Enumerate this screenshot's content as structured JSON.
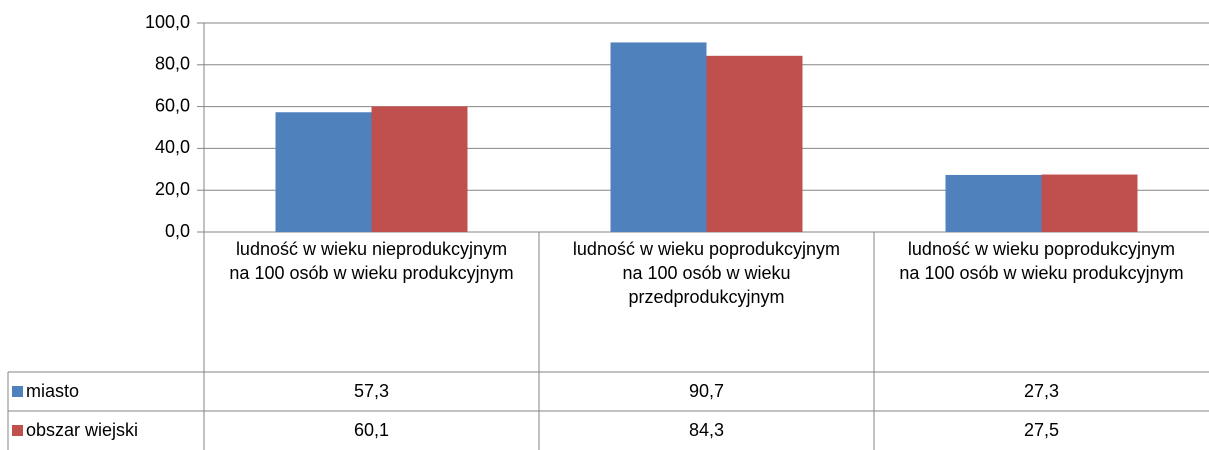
{
  "chart_data": {
    "type": "bar",
    "categories": [
      "ludność w wieku nieprodukcyjnym na 100 osób w wieku produkcyjnym",
      "ludność w wieku poprodukcyjnym na 100 osób w wieku przedprodukcyjnym",
      "ludność w wieku poprodukcyjnym na 100 osób w wieku produkcyjnym"
    ],
    "series": [
      {
        "name": "miasto",
        "color": "#4f81bd",
        "values": [
          57.3,
          90.7,
          27.3
        ],
        "value_labels": [
          "57,3",
          "90,7",
          "27,3"
        ]
      },
      {
        "name": "obszar wiejski",
        "color": "#c0504d",
        "values": [
          60.1,
          84.3,
          27.5
        ],
        "value_labels": [
          "60,1",
          "84,3",
          "27,5"
        ]
      }
    ],
    "ylim": [
      0,
      100
    ],
    "yticks": [
      {
        "value": 0,
        "label": "0,0"
      },
      {
        "value": 20,
        "label": "20,0"
      },
      {
        "value": 40,
        "label": "40,0"
      },
      {
        "value": 60,
        "label": "60,0"
      },
      {
        "value": 80,
        "label": "80,0"
      },
      {
        "value": 100,
        "label": "100,0"
      }
    ],
    "grid": true
  }
}
